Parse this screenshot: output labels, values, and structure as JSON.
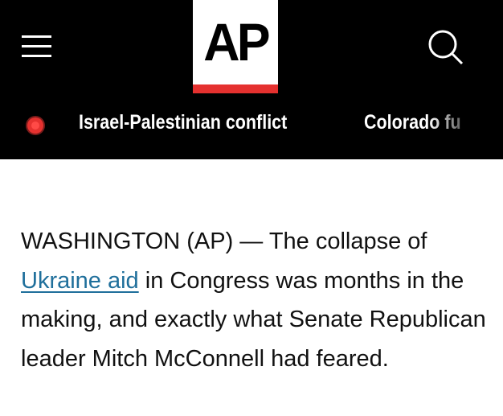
{
  "header": {
    "logo_text": "AP",
    "brand_color": "#e5312f",
    "menu_icon": "hamburger-menu-icon",
    "search_icon": "search-icon"
  },
  "trending": {
    "live_icon": "live-dot-icon",
    "items": [
      "Israel-Palestinian conflict",
      "Colorado fu"
    ]
  },
  "article": {
    "lead": "WASHINGTON (AP) — The collapse of ",
    "link_text": "Ukraine aid",
    "rest": " in Congress was months in the making, and exactly what Senate Republican leader Mitch McConnell had feared.",
    "link_color": "#1f6f9b"
  }
}
